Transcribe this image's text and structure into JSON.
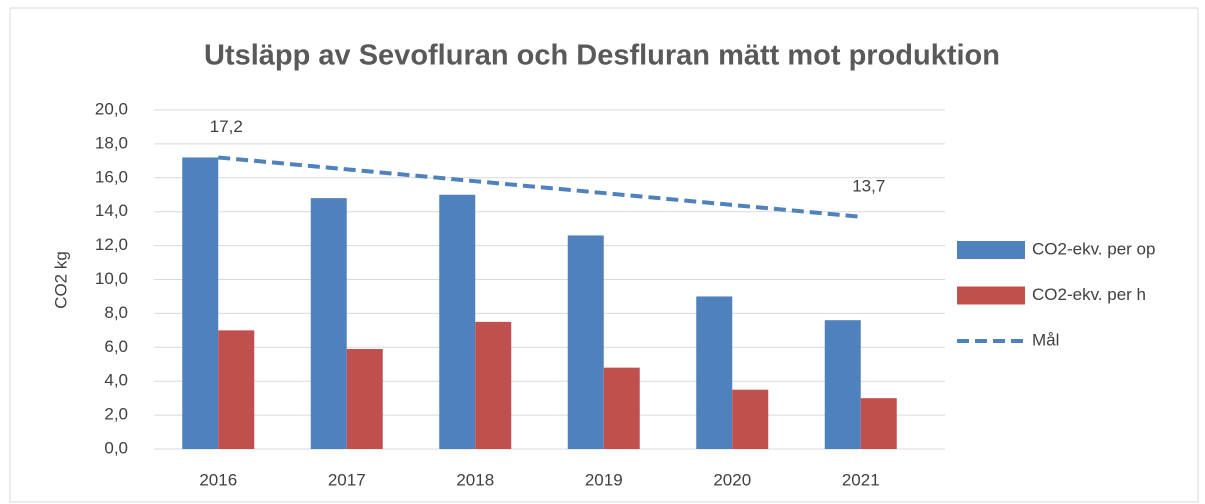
{
  "chart_data": {
    "type": "bar",
    "title": "Utsläpp av Sevofluran och Desfluran mätt mot produktion",
    "y_label": "CO2 kg",
    "categories": [
      "2016",
      "2017",
      "2018",
      "2019",
      "2020",
      "2021"
    ],
    "series": [
      {
        "name": "CO2-ekv. per op",
        "color": "#4f81bd",
        "values": [
          17.2,
          14.8,
          15.0,
          12.6,
          9.0,
          7.6
        ]
      },
      {
        "name": "CO2-ekv. per h",
        "color": "#c0504d",
        "values": [
          7.0,
          5.9,
          7.5,
          4.8,
          3.5,
          3.0
        ]
      },
      {
        "name": "Mål",
        "color": "#4f81bd",
        "type": "line",
        "dashed": true,
        "values": [
          17.2,
          16.5,
          15.8,
          15.1,
          14.4,
          13.7
        ],
        "value_labels": [
          "17,2",
          null,
          null,
          null,
          null,
          "13,7"
        ]
      }
    ],
    "ylim": [
      0,
      20
    ],
    "yticks": [
      {
        "value": 0,
        "label": "0,0"
      },
      {
        "value": 2,
        "label": "2,0"
      },
      {
        "value": 4,
        "label": "4,0"
      },
      {
        "value": 6,
        "label": "6,0"
      },
      {
        "value": 8,
        "label": "8,0"
      },
      {
        "value": 10,
        "label": "10,0"
      },
      {
        "value": 12,
        "label": "12,0"
      },
      {
        "value": 14,
        "label": "14,0"
      },
      {
        "value": 16,
        "label": "16,0"
      },
      {
        "value": 18,
        "label": "18,0"
      },
      {
        "value": 20,
        "label": "20,0"
      }
    ],
    "grid": true,
    "legend": "right"
  }
}
